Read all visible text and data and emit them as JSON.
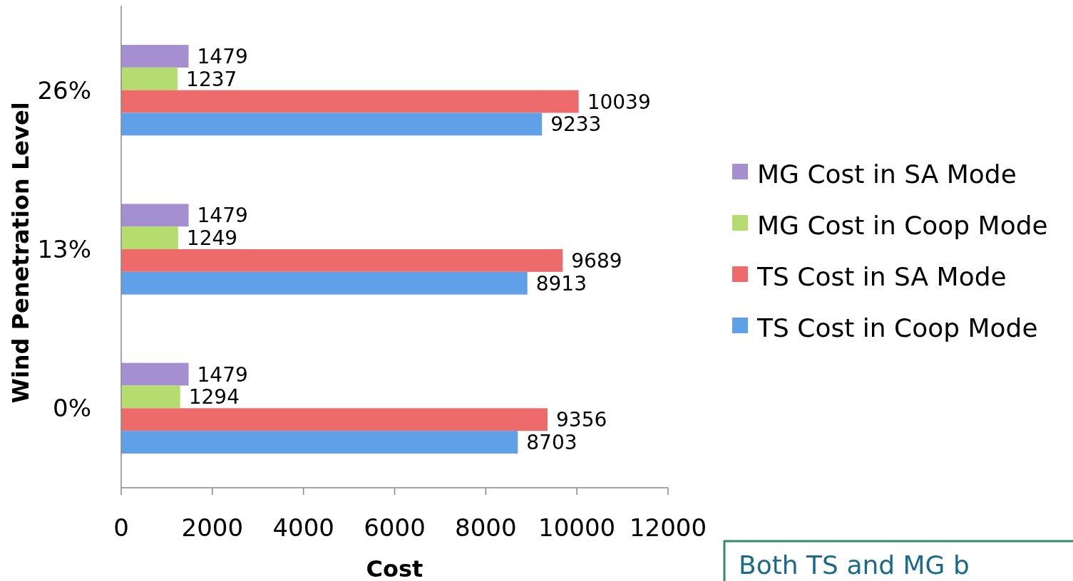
{
  "chart_data": {
    "type": "bar",
    "orientation": "horizontal",
    "xlabel": "Cost",
    "ylabel": "Wind Penetration Level",
    "categories": [
      "26%",
      "13%",
      "0%"
    ],
    "series": [
      {
        "name": "MG Cost in SA Mode",
        "color": "#a58fd0",
        "values": [
          1479,
          1479,
          1479
        ]
      },
      {
        "name": "MG Cost in Coop Mode",
        "color": "#b5dc6e",
        "values": [
          1237,
          1249,
          1294
        ]
      },
      {
        "name": "TS Cost in SA Mode",
        "color": "#ee6b6b",
        "values": [
          10039,
          9689,
          9356
        ]
      },
      {
        "name": "TS Cost in Coop Mode",
        "color": "#5fa0e8",
        "values": [
          9233,
          8913,
          8703
        ]
      }
    ],
    "xlim": [
      0,
      12000
    ],
    "xticks": [
      0,
      2000,
      4000,
      6000,
      8000,
      10000,
      12000
    ],
    "data_labels": true,
    "legend": "right",
    "annotations": [
      "Both TS and MG b"
    ]
  }
}
